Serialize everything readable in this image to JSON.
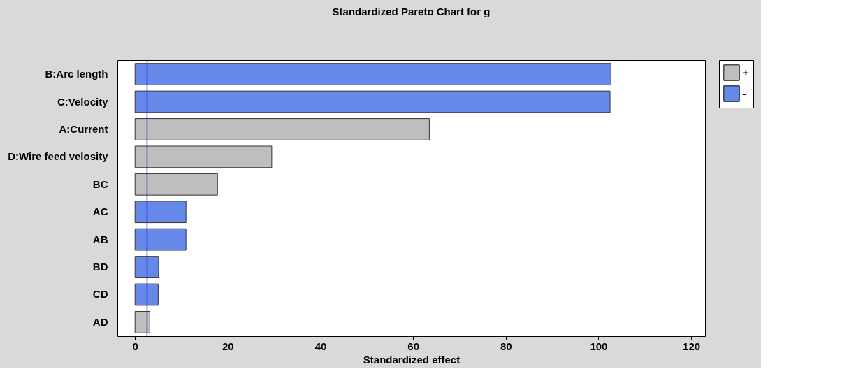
{
  "chart_data": {
    "type": "bar",
    "orientation": "horizontal",
    "title": "Standardized Pareto Chart for g",
    "xlabel": "Standardized effect",
    "categories": [
      "B:Arc length",
      "C:Velocity",
      "A:Current",
      "D:Wire feed velosity",
      "BC",
      "AC",
      "AB",
      "BD",
      "CD",
      "AD"
    ],
    "series": [
      {
        "name": "+",
        "color": "#bebebe",
        "values": [
          null,
          null,
          63.5,
          29.5,
          17.8,
          null,
          null,
          null,
          null,
          3.2
        ]
      },
      {
        "name": "-",
        "color": "#6688e8",
        "values": [
          102.7,
          102.5,
          null,
          null,
          null,
          11.0,
          11.0,
          5.1,
          5.0,
          null
        ]
      }
    ],
    "xlim": [
      -3.8,
      123
    ],
    "xticks": [
      0,
      20,
      40,
      60,
      80,
      100,
      120
    ],
    "ref_lines": [
      {
        "axis": "x",
        "value": 2.6,
        "color": "#2b2bd9"
      }
    ],
    "legend": "top right",
    "grid": false
  }
}
